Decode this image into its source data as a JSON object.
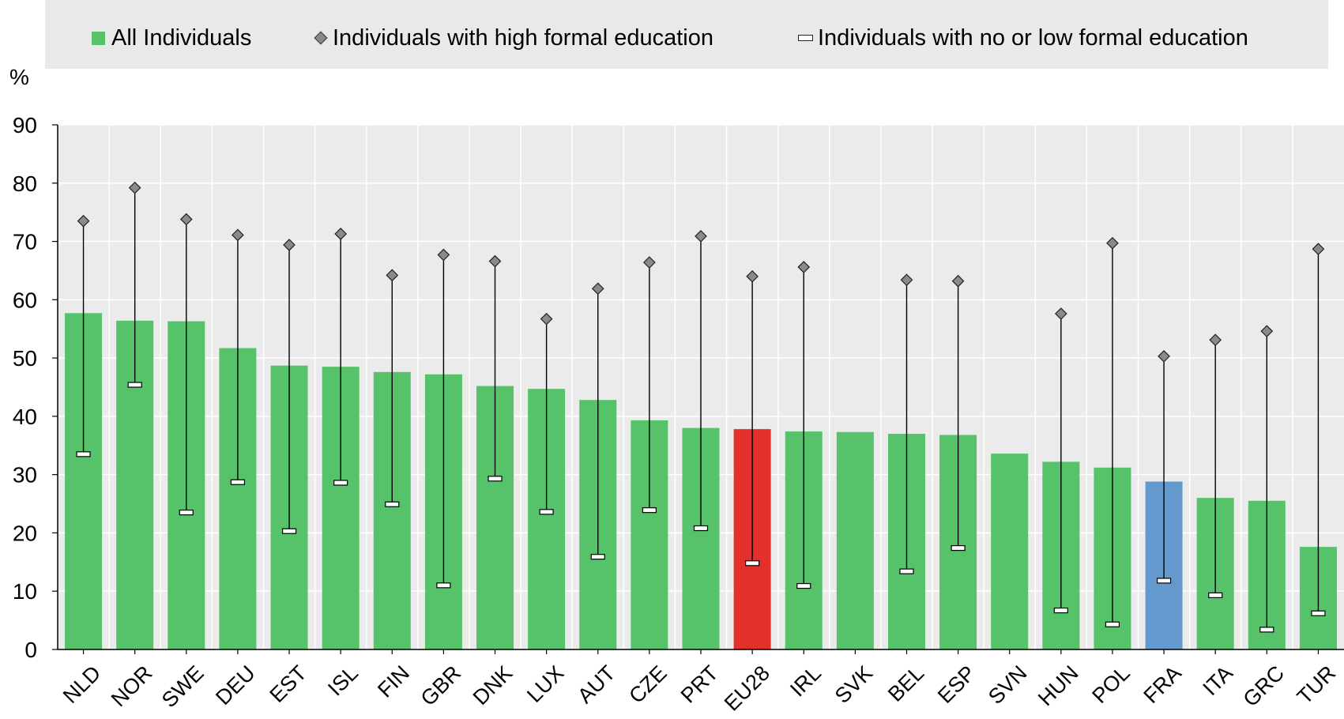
{
  "chart_data": {
    "type": "bar",
    "ylabel": "%",
    "ylim": [
      0,
      90
    ],
    "yticks": [
      0,
      10,
      20,
      30,
      40,
      50,
      60,
      70,
      80,
      90
    ],
    "grid": true,
    "legend_position": "top",
    "categories": [
      "NLD",
      "NOR",
      "SWE",
      "DEU",
      "EST",
      "ISL",
      "FIN",
      "GBR",
      "DNK",
      "LUX",
      "AUT",
      "CZE",
      "PRT",
      "EU28",
      "IRL",
      "SVK",
      "BEL",
      "ESP",
      "SVN",
      "HUN",
      "POL",
      "FRA",
      "ITA",
      "GRC",
      "TUR"
    ],
    "series": [
      {
        "name": "All Individuals",
        "kind": "bar",
        "values": [
          57.7,
          56.4,
          56.3,
          51.7,
          48.7,
          48.5,
          47.6,
          47.2,
          45.2,
          44.7,
          42.8,
          39.3,
          38.0,
          37.8,
          37.4,
          37.3,
          37.0,
          36.8,
          33.6,
          32.2,
          31.2,
          28.8,
          26.0,
          25.5,
          17.6
        ]
      },
      {
        "name": "Individuals with high formal education",
        "kind": "diamond",
        "values": [
          73.5,
          79.2,
          73.8,
          71.1,
          69.4,
          71.3,
          64.2,
          67.7,
          66.6,
          56.7,
          61.9,
          66.4,
          70.9,
          64.0,
          65.6,
          null,
          63.4,
          63.2,
          null,
          57.6,
          69.7,
          50.3,
          53.1,
          54.6,
          68.7
        ]
      },
      {
        "name": "Individuals with no or low formal education",
        "kind": "dash",
        "values": [
          33.5,
          45.4,
          23.5,
          28.7,
          20.3,
          28.6,
          24.9,
          11.0,
          29.3,
          23.6,
          15.9,
          23.9,
          20.8,
          14.8,
          10.9,
          null,
          13.4,
          17.4,
          null,
          6.7,
          4.3,
          11.8,
          9.3,
          3.4,
          6.2
        ]
      }
    ],
    "colors": {
      "bar": "#56c26a",
      "highlight_eu": "#e3302a",
      "highlight_fra": "#6399cc",
      "plot_background": "#ebebeb",
      "marker": "#8a8a8a"
    },
    "highlights": {
      "EU28": "highlight_eu",
      "FRA": "highlight_fra"
    }
  },
  "legend": {
    "all": "All Individuals",
    "high": "Individuals with high formal education",
    "low": "Individuals with no or low formal education"
  },
  "axis": {
    "unit": "%"
  }
}
